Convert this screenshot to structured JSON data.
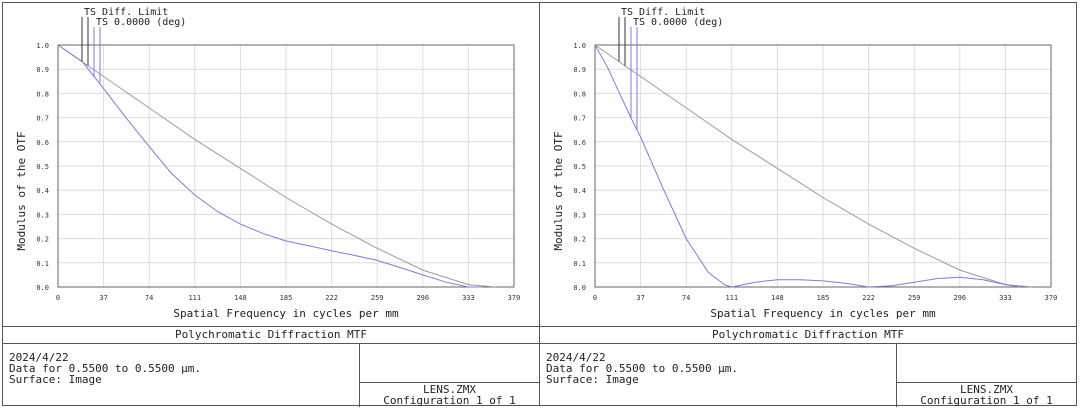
{
  "panels": [
    {
      "footer": {
        "title": "Polychromatic Diffraction MTF",
        "date": "2024/4/22",
        "data_line": "Data for 0.5500 to 0.5500 µm.",
        "surface_line": "Surface: Image",
        "file": "LENS.ZMX",
        "config": "Configuration 1 of 1"
      },
      "chart_data": {
        "type": "line",
        "xlabel": "Spatial Frequency in cycles per mm",
        "ylabel": "Modulus of the OTF",
        "xlim": [
          0,
          370
        ],
        "ylim": [
          0,
          1.0
        ],
        "x_ticks": [
          0,
          37,
          74,
          111,
          148,
          185,
          222,
          259,
          296,
          333,
          370
        ],
        "y_ticks": [
          0.0,
          0.1,
          0.2,
          0.3,
          0.4,
          0.5,
          0.6,
          0.7,
          0.8,
          0.9,
          1.0
        ],
        "grid": true,
        "legend_position": "top-left",
        "series": [
          {
            "name": "TS Diff. Limit",
            "color": "#9a9aa6",
            "x": [
              0,
              37,
              74,
              111,
              148,
              185,
              222,
              259,
              296,
              333,
              355
            ],
            "y": [
              1.0,
              0.87,
              0.74,
              0.61,
              0.49,
              0.37,
              0.26,
              0.16,
              0.07,
              0.01,
              0.0
            ]
          },
          {
            "name": "TS 0.0000 (deg)",
            "color": "#7b7be6",
            "x": [
              0,
              20,
              37,
              55,
              74,
              92,
              111,
              130,
              148,
              167,
              185,
              204,
              222,
              241,
              259,
              278,
              296,
              315,
              333,
              345
            ],
            "y": [
              1.0,
              0.93,
              0.82,
              0.7,
              0.58,
              0.47,
              0.38,
              0.31,
              0.26,
              0.22,
              0.19,
              0.17,
              0.15,
              0.13,
              0.11,
              0.08,
              0.05,
              0.02,
              0.0,
              0.0
            ]
          }
        ]
      }
    },
    {
      "footer": {
        "title": "Polychromatic Diffraction MTF",
        "date": "2024/4/22",
        "data_line": "Data for 0.5500 to 0.5500 µm.",
        "surface_line": "Surface: Image",
        "file": "LENS.ZMX",
        "config": "Configuration 1 of 1"
      },
      "chart_data": {
        "type": "line",
        "xlabel": "Spatial Frequency in cycles per mm",
        "ylabel": "Modulus of the OTF",
        "xlim": [
          0,
          370
        ],
        "ylim": [
          0,
          1.0
        ],
        "x_ticks": [
          0,
          37,
          74,
          111,
          148,
          185,
          222,
          259,
          296,
          333,
          370
        ],
        "y_ticks": [
          0.0,
          0.1,
          0.2,
          0.3,
          0.4,
          0.5,
          0.6,
          0.7,
          0.8,
          0.9,
          1.0
        ],
        "grid": true,
        "legend_position": "top-left",
        "series": [
          {
            "name": "TS Diff. Limit",
            "color": "#9a9aa6",
            "x": [
              0,
              37,
              74,
              111,
              148,
              185,
              222,
              259,
              296,
              333,
              355
            ],
            "y": [
              1.0,
              0.87,
              0.74,
              0.61,
              0.49,
              0.37,
              0.26,
              0.16,
              0.07,
              0.01,
              0.0
            ]
          },
          {
            "name": "TS 0.0000 (deg)",
            "color": "#7b7be6",
            "x": [
              0,
              10,
              20,
              30,
              37,
              55,
              74,
              92,
              105,
              111,
              130,
              148,
              167,
              185,
              204,
              222,
              241,
              259,
              278,
              296,
              315,
              333,
              345
            ],
            "y": [
              1.0,
              0.91,
              0.8,
              0.69,
              0.62,
              0.41,
              0.2,
              0.06,
              0.01,
              0.0,
              0.02,
              0.03,
              0.03,
              0.025,
              0.015,
              0.0,
              0.005,
              0.02,
              0.035,
              0.04,
              0.03,
              0.01,
              0.0
            ]
          }
        ]
      }
    }
  ]
}
